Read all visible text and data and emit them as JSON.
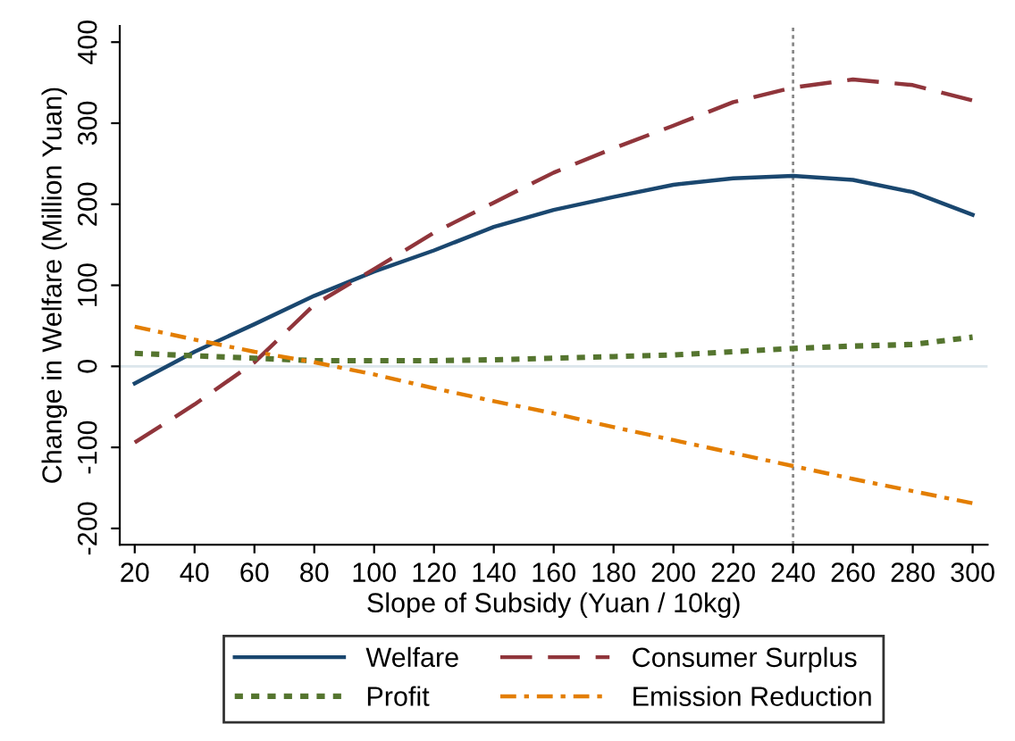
{
  "chart_data": {
    "type": "line",
    "xlabel": "Slope of Subsidy (Yuan / 10kg)",
    "ylabel": "Change in Welfare (Million Yuan)",
    "x": [
      20,
      40,
      60,
      80,
      100,
      120,
      140,
      160,
      180,
      200,
      220,
      240,
      260,
      280,
      300
    ],
    "series": [
      {
        "name": "Welfare",
        "color": "#1a476f",
        "line_style": "solid",
        "values": [
          -21,
          18,
          52,
          87,
          117,
          143,
          172,
          193,
          209,
          224,
          232,
          235,
          230,
          215,
          187
        ]
      },
      {
        "name": "Consumer Surplus",
        "color": "#90353b",
        "line_style": "dashed",
        "values": [
          -94,
          -47,
          5,
          76,
          120,
          165,
          202,
          239,
          269,
          297,
          326,
          344,
          354,
          347,
          328
        ]
      },
      {
        "name": "Profit",
        "color": "#55752f",
        "line_style": "dotted",
        "values": [
          16,
          13,
          10,
          7,
          7,
          7,
          8,
          10,
          12,
          14,
          18,
          22,
          25,
          27,
          36
        ]
      },
      {
        "name": "Emission Reduction",
        "color": "#e37e00",
        "line_style": "dashdot",
        "values": [
          49,
          33,
          18,
          5,
          -10,
          -27,
          -43,
          -58,
          -75,
          -91,
          -107,
          -123,
          -139,
          -154,
          -169
        ]
      }
    ],
    "xlim": [
      15,
      305
    ],
    "ylim": [
      -220,
      420
    ],
    "xticks": [
      20,
      40,
      60,
      80,
      100,
      120,
      140,
      160,
      180,
      200,
      220,
      240,
      260,
      280,
      300
    ],
    "yticks": [
      -200,
      -100,
      0,
      100,
      200,
      300,
      400
    ],
    "ref_lines": [
      {
        "axis": "y",
        "value": 0,
        "label": null,
        "color": "#dce6ec",
        "line_style": "solid"
      },
      {
        "axis": "x",
        "value": 240,
        "label": null,
        "color": "#888888",
        "line_style": "dotted"
      }
    ],
    "grid": false,
    "legend": "bottom"
  }
}
